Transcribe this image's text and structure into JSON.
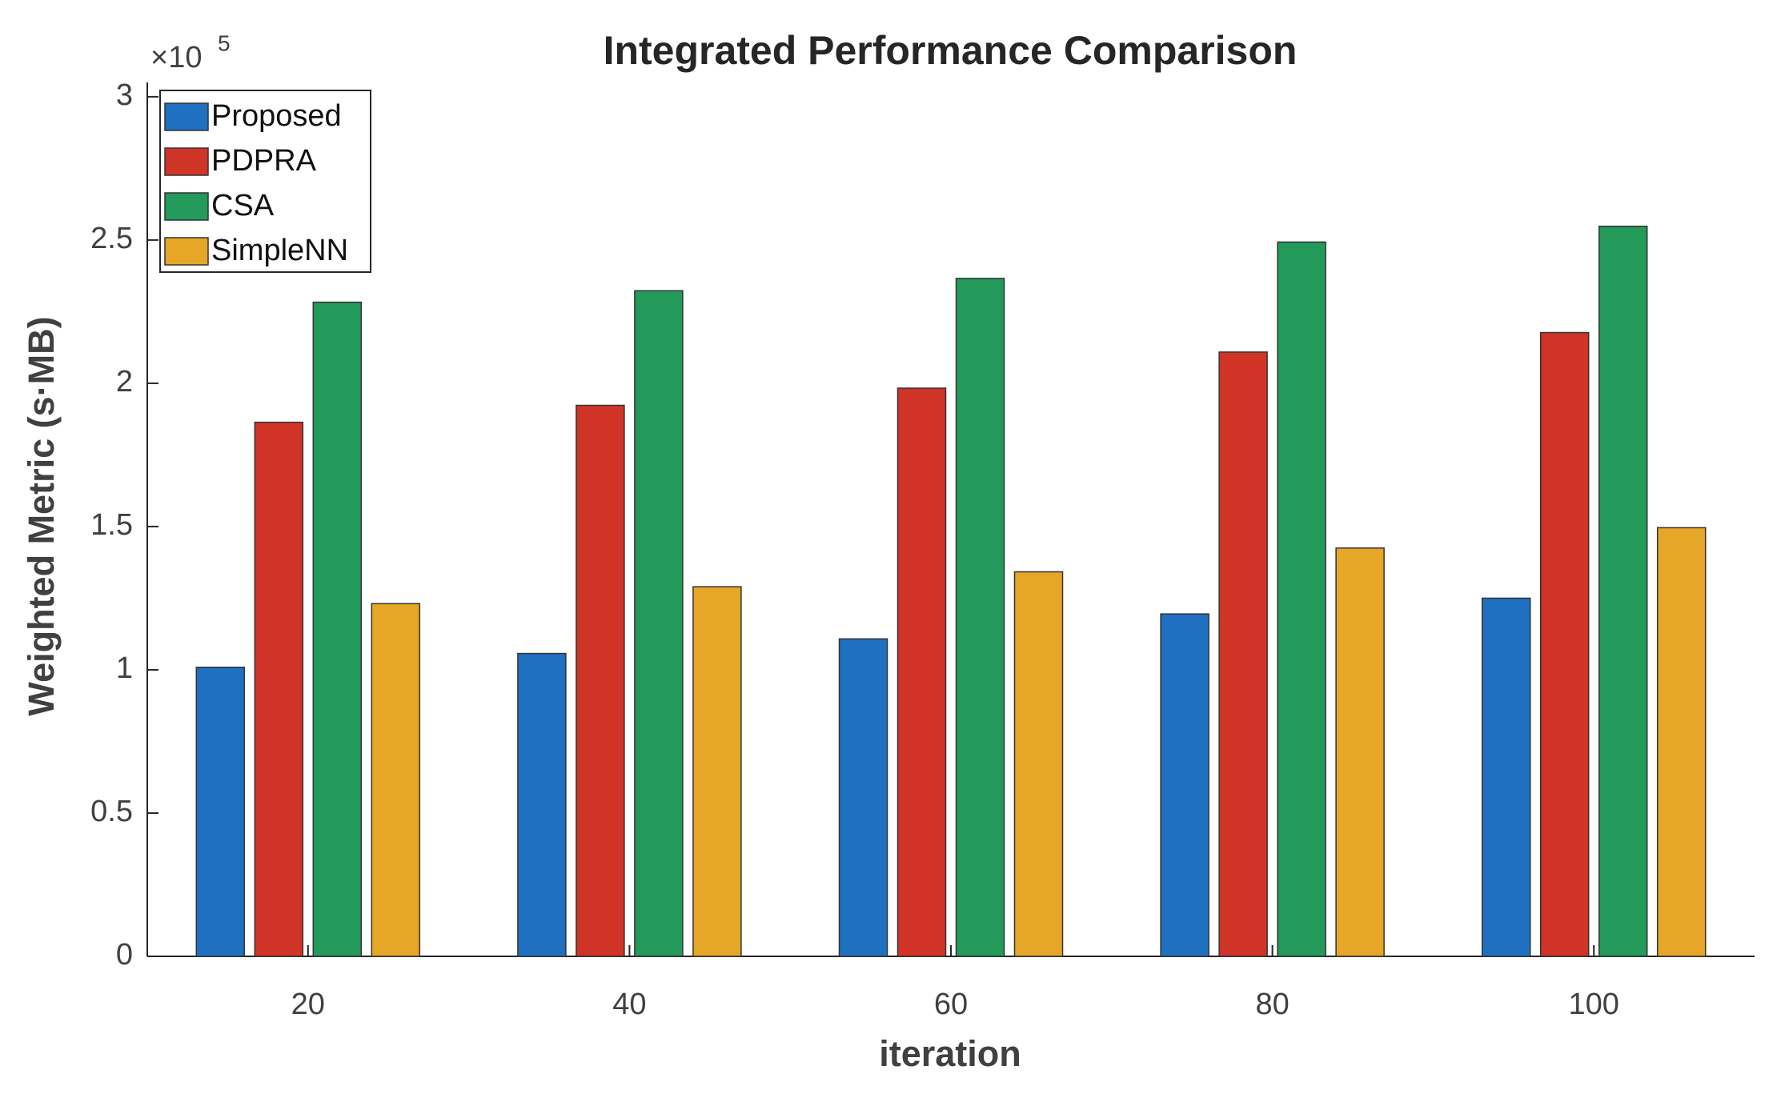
{
  "chart_data": {
    "type": "bar",
    "title": "Integrated Performance Comparison",
    "x_label": "iteration",
    "y_label": "Weighted Metric (s·MB)",
    "y_multiplier": {
      "base": "×10",
      "exponent": "5"
    },
    "x": [
      20,
      40,
      60,
      80,
      100
    ],
    "xlim": [
      10,
      110
    ],
    "xticks": [
      20,
      40,
      60,
      80,
      100
    ],
    "ylim": [
      0,
      3.05
    ],
    "yticks": [
      0,
      0.5,
      1,
      1.5,
      2,
      2.5,
      3
    ],
    "grid": false,
    "legend": "upper left",
    "series": [
      {
        "name": "Proposed",
        "color": "#1f70c1",
        "values": [
          1.009,
          1.057,
          1.108,
          1.195,
          1.25
        ]
      },
      {
        "name": "PDPRA",
        "color": "#cf3427",
        "values": [
          1.864,
          1.923,
          1.983,
          2.109,
          2.177
        ]
      },
      {
        "name": "CSA",
        "color": "#23995a",
        "values": [
          2.283,
          2.323,
          2.366,
          2.493,
          2.548
        ]
      },
      {
        "name": "SimpleNN",
        "color": "#e6a628",
        "values": [
          1.231,
          1.29,
          1.342,
          1.425,
          1.496
        ]
      }
    ]
  }
}
